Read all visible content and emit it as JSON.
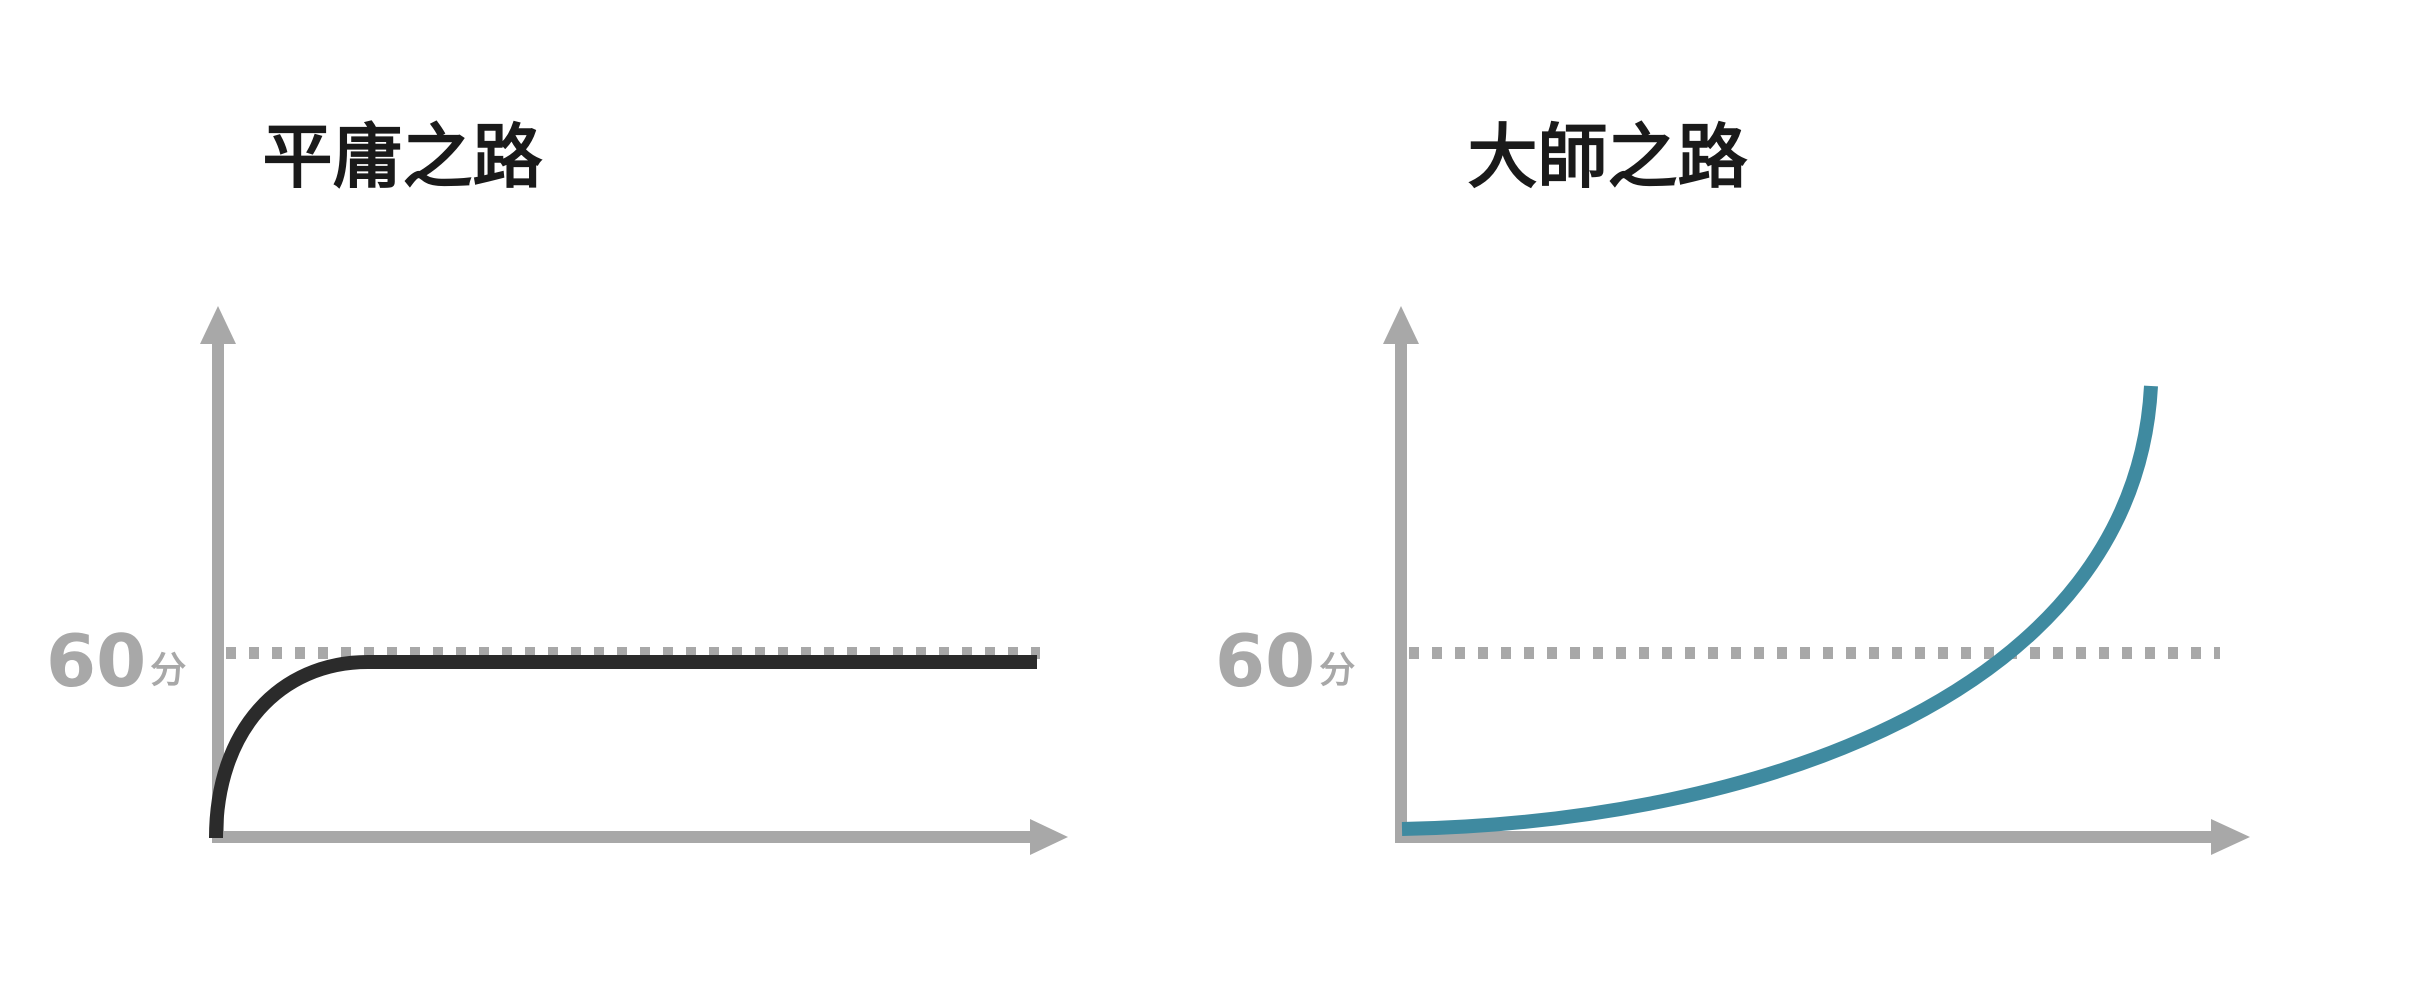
{
  "colors": {
    "axis": "#a8a8a8",
    "threshold": "#a8a8a8",
    "mediocre_curve": "#2b2b2b",
    "master_curve": "#3f8aa0",
    "title": "#1a1a1a"
  },
  "panels": [
    {
      "title": "平庸之路",
      "threshold_value": "60",
      "threshold_unit": "分",
      "curve": "rises-quickly-then-plateaus-at-threshold"
    },
    {
      "title": "大師之路",
      "threshold_value": "60",
      "threshold_unit": "分",
      "curve": "starts-slow-then-grows-exponentially-past-threshold"
    }
  ]
}
